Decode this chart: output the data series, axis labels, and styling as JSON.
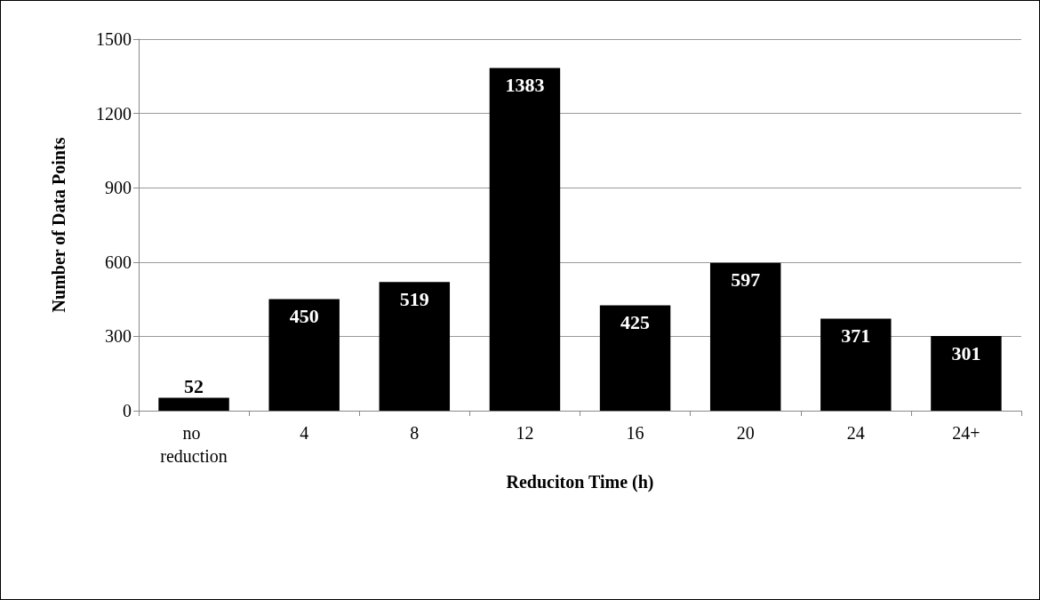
{
  "chart_data": {
    "type": "bar",
    "xlabel": "Reduciton Time (h)",
    "ylabel": "Number of Data Points",
    "categories": [
      "no reduction",
      "4",
      "8",
      "12",
      "16",
      "20",
      "24",
      "24+"
    ],
    "values": [
      52,
      450,
      519,
      1383,
      425,
      597,
      371,
      301
    ],
    "color": "#000000",
    "ylim": [
      0,
      1500
    ],
    "yticks": [
      0,
      300,
      600,
      900,
      1200,
      1500
    ],
    "grid": "y",
    "data_labels": true
  }
}
